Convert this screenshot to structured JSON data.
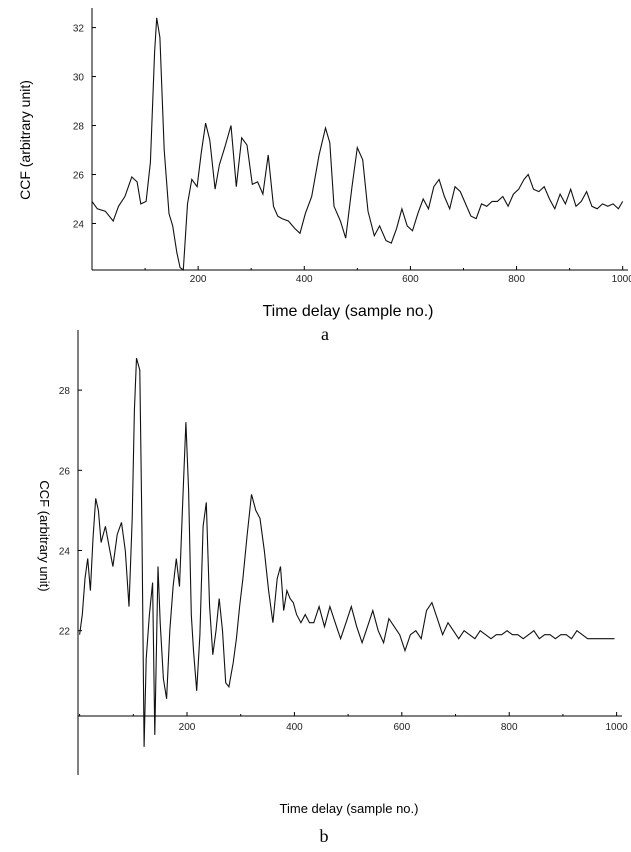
{
  "chart_data": [
    {
      "type": "line",
      "panel_label": "a",
      "xlabel": "Time delay (sample no.)",
      "ylabel": "CCF (arbitrary unit)",
      "xlim": [
        0,
        1010
      ],
      "ylim": [
        22.1,
        32.8
      ],
      "x_ticks": [
        200,
        400,
        600,
        800,
        1000
      ],
      "y_ticks": [
        24,
        26,
        28,
        30,
        32
      ],
      "grid": false,
      "series": [
        {
          "x": [
            0,
            10,
            25,
            40,
            50,
            62,
            75,
            85,
            92,
            102,
            110,
            118,
            122,
            128,
            136,
            145,
            152,
            160,
            166,
            172,
            180,
            188,
            198,
            206,
            214,
            222,
            232,
            240,
            250,
            262,
            272,
            282,
            292,
            302,
            312,
            322,
            332,
            342,
            350,
            358,
            370,
            382,
            392,
            402,
            414,
            428,
            440,
            448,
            456,
            468,
            478,
            490,
            500,
            510,
            520,
            532,
            542,
            554,
            564,
            574,
            584,
            594,
            604,
            614,
            624,
            634,
            644,
            654,
            664,
            674,
            684,
            694,
            704,
            714,
            724,
            734,
            744,
            754,
            764,
            774,
            784,
            794,
            804,
            814,
            822,
            832,
            842,
            852,
            862,
            872,
            882,
            892,
            902,
            912,
            922,
            932,
            942,
            952,
            962,
            972,
            982,
            992,
            1000
          ],
          "y": [
            24.9,
            24.6,
            24.5,
            24.1,
            24.7,
            25.1,
            25.9,
            25.7,
            24.8,
            24.9,
            26.5,
            31.0,
            32.4,
            31.6,
            27.0,
            24.4,
            23.9,
            22.8,
            22.2,
            22.1,
            24.8,
            25.8,
            25.5,
            26.9,
            28.1,
            27.4,
            25.4,
            26.4,
            27.1,
            28.0,
            25.5,
            27.5,
            27.2,
            25.6,
            25.7,
            25.2,
            26.8,
            24.7,
            24.3,
            24.2,
            24.1,
            23.8,
            23.6,
            24.4,
            25.1,
            26.8,
            27.9,
            27.3,
            24.7,
            24.1,
            23.4,
            25.5,
            27.1,
            26.6,
            24.5,
            23.5,
            23.9,
            23.3,
            23.2,
            23.8,
            24.6,
            23.9,
            23.7,
            24.4,
            25.0,
            24.6,
            25.5,
            25.8,
            25.1,
            24.6,
            25.5,
            25.3,
            24.8,
            24.3,
            24.2,
            24.8,
            24.7,
            24.9,
            24.9,
            25.1,
            24.7,
            25.2,
            25.4,
            25.8,
            26.0,
            25.4,
            25.3,
            25.5,
            25.0,
            24.6,
            25.2,
            24.8,
            25.4,
            24.7,
            24.9,
            25.3,
            24.7,
            24.6,
            24.8,
            24.7,
            24.8,
            24.6,
            24.9
          ]
        }
      ]
    },
    {
      "type": "line",
      "panel_label": "b",
      "xlabel": "Time delay (sample no.)",
      "ylabel": "CCF (arbitrary unit)",
      "xlim": [
        -3,
        1010
      ],
      "ylim": [
        18.4,
        29.5
      ],
      "x_ticks": [
        200,
        400,
        600,
        800,
        1000
      ],
      "y_ticks": [
        22,
        24,
        26,
        28
      ],
      "grid": false,
      "series": [
        {
          "x": [
            0,
            5,
            10,
            15,
            20,
            25,
            30,
            35,
            40,
            48,
            55,
            62,
            70,
            78,
            85,
            92,
            98,
            102,
            106,
            112,
            116,
            120,
            124,
            130,
            136,
            140,
            146,
            150,
            156,
            162,
            168,
            174,
            180,
            186,
            192,
            198,
            203,
            208,
            212,
            218,
            224,
            230,
            236,
            242,
            248,
            254,
            260,
            266,
            272,
            278,
            286,
            292,
            298,
            304,
            312,
            320,
            328,
            336,
            344,
            352,
            360,
            368,
            374,
            380,
            386,
            392,
            398,
            404,
            412,
            420,
            428,
            436,
            446,
            456,
            466,
            476,
            486,
            496,
            506,
            516,
            526,
            536,
            546,
            556,
            566,
            576,
            586,
            596,
            606,
            616,
            626,
            636,
            646,
            656,
            666,
            676,
            686,
            696,
            706,
            716,
            726,
            736,
            746,
            756,
            766,
            776,
            786,
            796,
            806,
            816,
            826,
            836,
            846,
            856,
            866,
            876,
            886,
            896,
            906,
            916,
            926,
            936,
            946,
            956,
            966,
            976,
            986,
            996
          ],
          "y": [
            21.9,
            22.4,
            23.3,
            23.8,
            23.0,
            24.3,
            25.3,
            25.0,
            24.2,
            24.6,
            24.1,
            23.6,
            24.4,
            24.7,
            24.0,
            22.6,
            24.8,
            27.5,
            28.8,
            28.5,
            24.6,
            19.1,
            21.3,
            22.4,
            23.2,
            19.4,
            23.6,
            22.2,
            20.8,
            20.3,
            22.0,
            23.1,
            23.8,
            23.1,
            25.2,
            27.2,
            25.5,
            22.4,
            21.5,
            20.5,
            21.9,
            24.6,
            25.2,
            22.6,
            21.4,
            22.0,
            22.8,
            22.0,
            20.7,
            20.6,
            21.2,
            21.8,
            22.6,
            23.3,
            24.4,
            25.4,
            25.0,
            24.8,
            24.0,
            23.0,
            22.2,
            23.3,
            23.6,
            22.5,
            23.0,
            22.8,
            22.7,
            22.4,
            22.2,
            22.4,
            22.2,
            22.2,
            22.6,
            22.1,
            22.6,
            22.2,
            21.8,
            22.2,
            22.6,
            22.1,
            21.7,
            22.1,
            22.5,
            22.0,
            21.7,
            22.3,
            22.1,
            21.9,
            21.5,
            21.9,
            22.0,
            21.8,
            22.5,
            22.7,
            22.3,
            21.9,
            22.2,
            22.0,
            21.8,
            22.0,
            21.9,
            21.8,
            22.0,
            21.9,
            21.8,
            21.9,
            21.9,
            22.0,
            21.9,
            21.9,
            21.8,
            21.9,
            22.0,
            21.8,
            21.9,
            21.9,
            21.8,
            21.9,
            21.9,
            21.8,
            22.0,
            21.9,
            21.8,
            21.8,
            21.8,
            21.8,
            21.8,
            21.8
          ]
        }
      ]
    }
  ]
}
